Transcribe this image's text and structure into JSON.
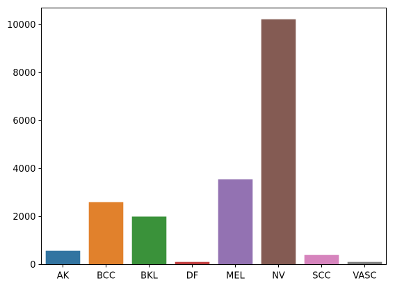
{
  "chart_data": {
    "type": "bar",
    "categories": [
      "AK",
      "BCC",
      "BKL",
      "DF",
      "MEL",
      "NV",
      "SCC",
      "VASC"
    ],
    "values": [
      575,
      2600,
      2000,
      110,
      3550,
      10220,
      400,
      110
    ],
    "colors": [
      "#3274a1",
      "#e1812c",
      "#3a923a",
      "#c03d3e",
      "#9372b2",
      "#845b53",
      "#d684bd",
      "#7f7f7f"
    ],
    "ylim": [
      0,
      10690
    ],
    "yticks": [
      0,
      2000,
      4000,
      6000,
      8000,
      10000
    ],
    "title": "",
    "xlabel": "",
    "ylabel": "",
    "grid": false
  }
}
